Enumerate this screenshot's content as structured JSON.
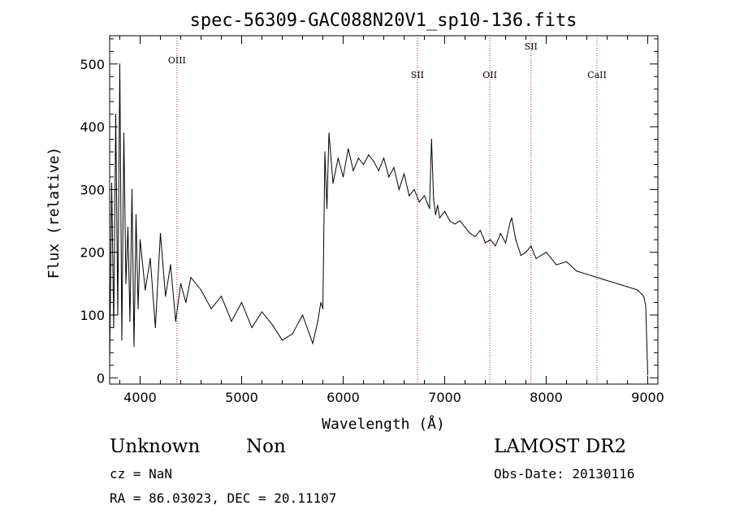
{
  "chart_data": {
    "type": "line",
    "title": "spec-56309-GAC088N20V1_sp10-136.fits",
    "xlabel": "Wavelength (Å)",
    "ylabel": "Flux (relative)",
    "xlim": [
      3700,
      9100
    ],
    "ylim": [
      -10,
      545
    ],
    "x_ticks": [
      4000,
      5000,
      6000,
      7000,
      8000,
      9000
    ],
    "y_ticks": [
      0,
      100,
      200,
      300,
      400,
      500
    ],
    "grid": false,
    "color": "#000000",
    "line_marker_color": "#a03030",
    "lines": [
      {
        "name": "OIII",
        "x": 4363
      },
      {
        "name": "SII",
        "x": 6731
      },
      {
        "name": "OII",
        "x": 7445
      },
      {
        "name": "SII",
        "x": 7850
      },
      {
        "name": "CaII",
        "x": 8500
      }
    ],
    "series": [
      {
        "x": [
          3700,
          3720,
          3740,
          3760,
          3780,
          3800,
          3820,
          3840,
          3860,
          3880,
          3900,
          3920,
          3940,
          3960,
          3980,
          4000,
          4050,
          4100,
          4150,
          4200,
          4250,
          4300,
          4350,
          4400,
          4450,
          4500,
          4600,
          4700,
          4800,
          4900,
          5000,
          5100,
          5200,
          5300,
          5400,
          5500,
          5600,
          5700,
          5750,
          5780,
          5800,
          5820,
          5840,
          5860,
          5900,
          5950,
          6000,
          6050,
          6100,
          6150,
          6200,
          6250,
          6300,
          6350,
          6400,
          6450,
          6500,
          6550,
          6600,
          6650,
          6700,
          6750,
          6800,
          6850,
          6870,
          6890,
          6910,
          6930,
          6950,
          7000,
          7050,
          7100,
          7150,
          7200,
          7250,
          7300,
          7350,
          7400,
          7450,
          7500,
          7550,
          7600,
          7640,
          7660,
          7700,
          7750,
          7800,
          7850,
          7900,
          7950,
          8000,
          8100,
          8200,
          8300,
          8400,
          8500,
          8600,
          8700,
          8800,
          8900,
          8960,
          8980,
          9000
        ],
        "y": [
          20,
          310,
          80,
          420,
          100,
          500,
          60,
          390,
          150,
          240,
          90,
          300,
          50,
          260,
          110,
          220,
          140,
          190,
          80,
          230,
          130,
          180,
          90,
          150,
          120,
          160,
          140,
          110,
          130,
          90,
          120,
          80,
          105,
          85,
          60,
          70,
          100,
          55,
          90,
          120,
          110,
          360,
          270,
          390,
          310,
          350,
          320,
          365,
          330,
          350,
          340,
          355,
          345,
          330,
          350,
          320,
          335,
          300,
          325,
          290,
          300,
          280,
          290,
          270,
          380,
          285,
          260,
          275,
          255,
          265,
          250,
          245,
          250,
          240,
          230,
          225,
          235,
          215,
          220,
          210,
          230,
          215,
          245,
          255,
          220,
          195,
          200,
          210,
          190,
          195,
          200,
          180,
          185,
          170,
          165,
          160,
          155,
          150,
          145,
          140,
          130,
          115,
          5
        ]
      }
    ]
  },
  "info": {
    "object_class": "Unknown",
    "subclass": "Non",
    "survey": "LAMOST DR2",
    "cz": "cz = NaN",
    "obs_date": "Obs-Date: 20130116",
    "coords": "RA =  86.03023, DEC =  20.11107"
  }
}
